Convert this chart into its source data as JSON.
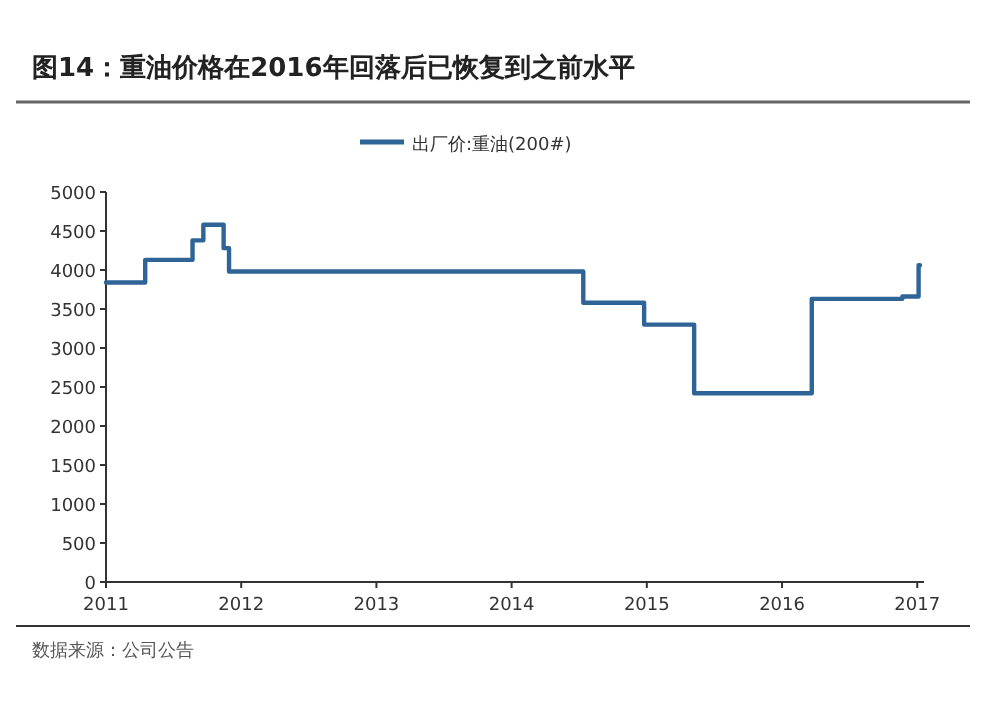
{
  "chart_data": {
    "type": "step",
    "title": "图14：重油价格在2016年回落后已恢复到之前水平",
    "annotations": [
      "数据来源：公司公告"
    ],
    "legend": "top",
    "xlim": [
      2011,
      2017.05
    ],
    "xticks": [
      2011,
      2012,
      2013,
      2014,
      2015,
      2016,
      2017
    ],
    "ylim": [
      0,
      5000
    ],
    "yticks": [
      0,
      500,
      1000,
      1500,
      2000,
      2500,
      3000,
      3500,
      4000,
      4500,
      5000
    ],
    "series": [
      {
        "name": "出厂价:重油(200#)",
        "color": "#2f6496",
        "x": [
          2011.0,
          2011.29,
          2011.64,
          2011.72,
          2011.87,
          2011.91,
          2014.53,
          2014.98,
          2015.35,
          2016.22,
          2016.89,
          2017.01,
          2017.02
        ],
        "values": [
          3840,
          4130,
          4380,
          4580,
          4280,
          3980,
          3580,
          3300,
          2420,
          3630,
          3660,
          4060,
          4060
        ]
      }
    ]
  }
}
